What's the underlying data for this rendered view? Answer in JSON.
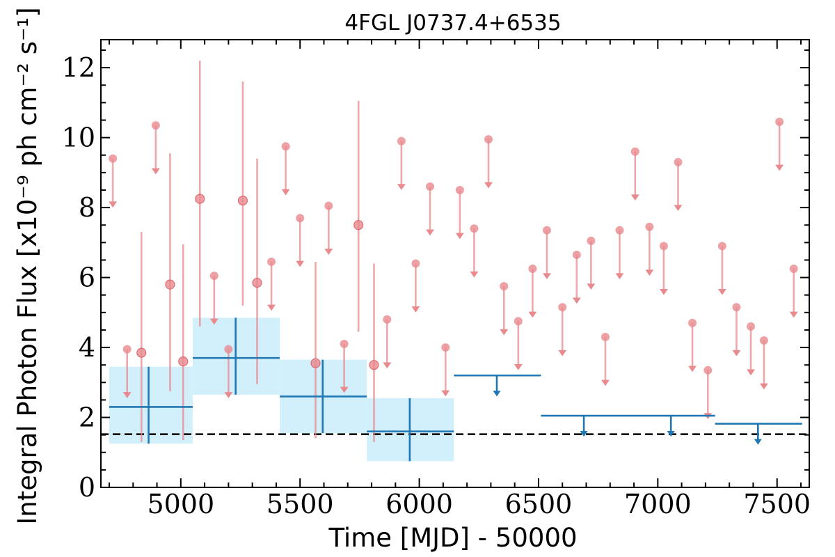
{
  "chart_data": {
    "type": "scatter",
    "title": "4FGL J0737.4+6535",
    "xlabel": "Time [MJD] - 50000",
    "ylabel": "Integral Photon Flux [x10⁻⁹ ph cm⁻² s⁻¹]",
    "xlim": [
      4665,
      7635
    ],
    "ylim": [
      0,
      12.8
    ],
    "xticks": [
      5000,
      5500,
      6000,
      6500,
      7000,
      7500
    ],
    "yticks": [
      0,
      2,
      4,
      6,
      8,
      10,
      12
    ],
    "grid": false,
    "colors": {
      "fine": "#e88a8e",
      "coarse": "#1f77b4",
      "band": "#cdeefc",
      "reference": "#000000"
    },
    "fine_detections": [
      {
        "x": 4835,
        "y": 3.85,
        "lo": 1.3,
        "hi": 7.3
      },
      {
        "x": 4955,
        "y": 5.8,
        "lo": 2.75,
        "hi": 9.55
      },
      {
        "x": 5010,
        "y": 3.6,
        "lo": 1.35,
        "hi": 6.95
      },
      {
        "x": 5080,
        "y": 8.25,
        "lo": 4.6,
        "hi": 12.2
      },
      {
        "x": 5260,
        "y": 8.2,
        "lo": 5.2,
        "hi": 11.6
      },
      {
        "x": 5320,
        "y": 5.85,
        "lo": 2.95,
        "hi": 9.4
      },
      {
        "x": 5565,
        "y": 3.55,
        "lo": 1.4,
        "hi": 6.45
      },
      {
        "x": 5745,
        "y": 7.5,
        "lo": 4.45,
        "hi": 11.05
      },
      {
        "x": 5810,
        "y": 3.5,
        "lo": 1.3,
        "hi": 6.4
      }
    ],
    "fine_upper_limits": [
      {
        "x": 4715,
        "y": 9.4
      },
      {
        "x": 4775,
        "y": 3.95
      },
      {
        "x": 4895,
        "y": 10.35
      },
      {
        "x": 5140,
        "y": 6.05
      },
      {
        "x": 5200,
        "y": 3.95
      },
      {
        "x": 5380,
        "y": 6.45
      },
      {
        "x": 5440,
        "y": 9.75
      },
      {
        "x": 5500,
        "y": 7.7
      },
      {
        "x": 5620,
        "y": 8.05
      },
      {
        "x": 5685,
        "y": 4.1
      },
      {
        "x": 5865,
        "y": 4.8
      },
      {
        "x": 5925,
        "y": 9.9
      },
      {
        "x": 5985,
        "y": 6.4
      },
      {
        "x": 6045,
        "y": 8.6
      },
      {
        "x": 6110,
        "y": 4.0
      },
      {
        "x": 6170,
        "y": 8.5
      },
      {
        "x": 6230,
        "y": 7.4
      },
      {
        "x": 6290,
        "y": 9.95
      },
      {
        "x": 6355,
        "y": 5.75
      },
      {
        "x": 6415,
        "y": 4.75
      },
      {
        "x": 6475,
        "y": 6.25
      },
      {
        "x": 6535,
        "y": 7.35
      },
      {
        "x": 6600,
        "y": 5.15
      },
      {
        "x": 6660,
        "y": 6.65
      },
      {
        "x": 6720,
        "y": 7.05
      },
      {
        "x": 6780,
        "y": 4.3
      },
      {
        "x": 6840,
        "y": 7.35
      },
      {
        "x": 6905,
        "y": 9.6
      },
      {
        "x": 6965,
        "y": 7.45
      },
      {
        "x": 7025,
        "y": 6.9
      },
      {
        "x": 7085,
        "y": 9.3
      },
      {
        "x": 7145,
        "y": 4.7
      },
      {
        "x": 7210,
        "y": 3.35
      },
      {
        "x": 7270,
        "y": 6.9
      },
      {
        "x": 7330,
        "y": 5.15
      },
      {
        "x": 7390,
        "y": 4.6
      },
      {
        "x": 7445,
        "y": 4.2
      },
      {
        "x": 7510,
        "y": 10.45
      },
      {
        "x": 7570,
        "y": 6.25
      }
    ],
    "coarse_detections": [
      {
        "x0": 4700,
        "x1": 5050,
        "xc": 4865,
        "y": 2.3,
        "lo": 1.25,
        "hi": 3.45
      },
      {
        "x0": 5050,
        "x1": 5415,
        "xc": 5230,
        "y": 3.7,
        "lo": 2.65,
        "hi": 4.85
      },
      {
        "x0": 5415,
        "x1": 5780,
        "xc": 5595,
        "y": 2.6,
        "lo": 1.55,
        "hi": 3.65
      },
      {
        "x0": 5780,
        "x1": 6145,
        "xc": 5960,
        "y": 1.6,
        "lo": 0.75,
        "hi": 2.55
      }
    ],
    "coarse_upper_limits": [
      {
        "x0": 6145,
        "x1": 6510,
        "xc": 6325,
        "y": 3.2
      },
      {
        "x0": 6510,
        "x1": 6875,
        "xc": 6690,
        "y": 2.05
      },
      {
        "x0": 6875,
        "x1": 7240,
        "xc": 7055,
        "y": 2.05
      },
      {
        "x0": 7240,
        "x1": 7605,
        "xc": 7420,
        "y": 1.82
      }
    ],
    "reference_level": 1.52
  }
}
